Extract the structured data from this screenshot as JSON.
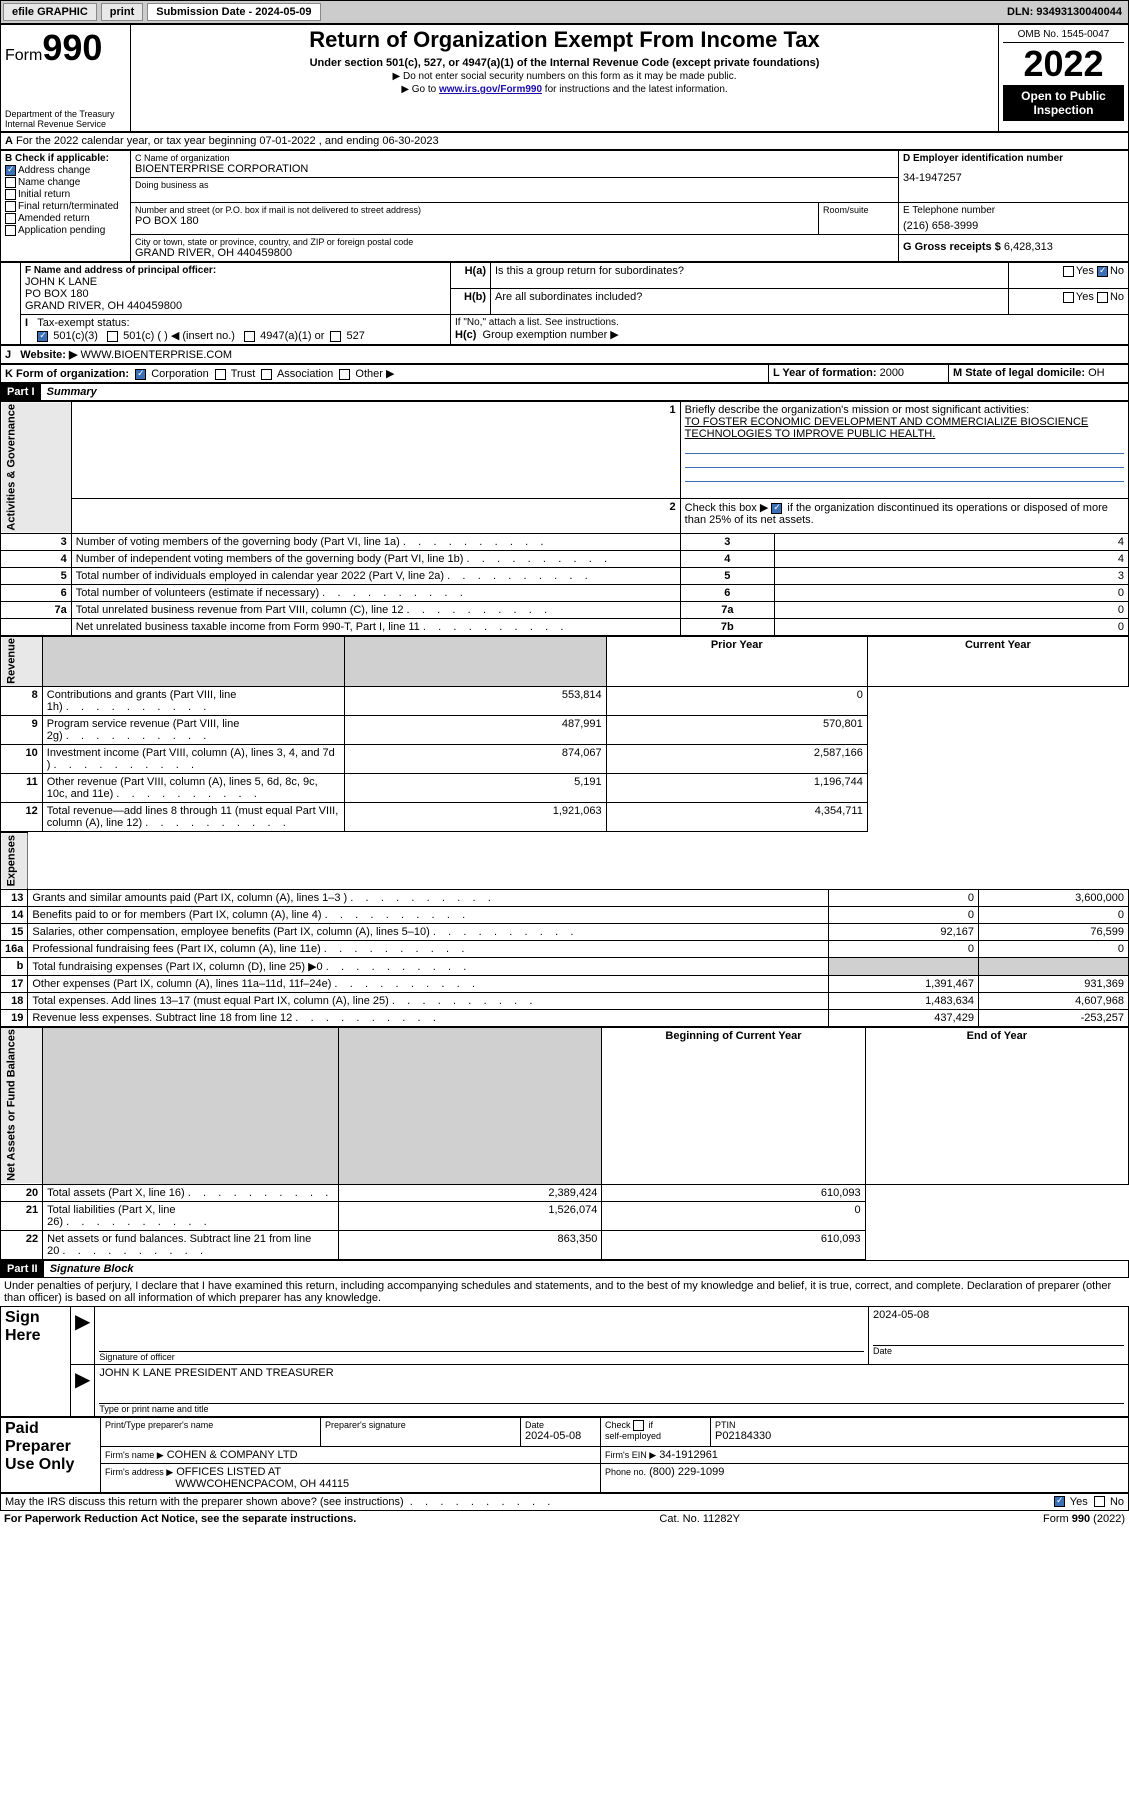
{
  "topbar": {
    "efile": "efile GRAPHIC",
    "print": "print",
    "submission": "Submission Date - 2024-05-09",
    "dln": "DLN: 93493130040044"
  },
  "header": {
    "form_prefix": "Form",
    "form_number": "990",
    "dept": "Department of the Treasury",
    "irs": "Internal Revenue Service",
    "title": "Return of Organization Exempt From Income Tax",
    "subtitle": "Under section 501(c), 527, or 4947(a)(1) of the Internal Revenue Code (except private foundations)",
    "note1": "Do not enter social security numbers on this form as it may be made public.",
    "note2_pre": "Go to ",
    "note2_link": "www.irs.gov/Form990",
    "note2_post": " for instructions and the latest information.",
    "omb": "OMB No. 1545-0047",
    "year": "2022",
    "open": "Open to Public Inspection"
  },
  "lineA": "For the 2022 calendar year, or tax year beginning 07-01-2022    , and ending 06-30-2023",
  "boxB": {
    "label": "B Check if applicable:",
    "addr": "Address change",
    "name": "Name change",
    "initial": "Initial return",
    "final": "Final return/terminated",
    "amended": "Amended return",
    "app": "Application pending"
  },
  "boxC": {
    "name_lbl": "C Name of organization",
    "name": "BIOENTERPRISE CORPORATION",
    "dba": "Doing business as",
    "addr_lbl": "Number and street (or P.O. box if mail is not delivered to street address)",
    "room": "Room/suite",
    "addr": "PO BOX 180",
    "city_lbl": "City or town, state or province, country, and ZIP or foreign postal code",
    "city": "GRAND RIVER, OH  440459800"
  },
  "boxD": {
    "lbl": "D Employer identification number",
    "val": "34-1947257"
  },
  "boxE": {
    "lbl": "E Telephone number",
    "val": "(216) 658-3999"
  },
  "boxG": {
    "lbl": "G Gross receipts $",
    "val": "6,428,313"
  },
  "boxF": {
    "lbl": "F Name and address of principal officer:",
    "line1": "JOHN K LANE",
    "line2": "PO BOX 180",
    "line3": "GRAND RIVER, OH  440459800"
  },
  "boxH": {
    "a": "Is this a group return for subordinates?",
    "b": "Are all subordinates included?",
    "b_note": "If \"No,\" attach a list. See instructions.",
    "c": "Group exemption number ▶",
    "yes": "Yes",
    "no": "No"
  },
  "lineI": {
    "lbl": "Tax-exempt status:",
    "c3": "501(c)(3)",
    "c": "501(c) (  ) ◀ (insert no.)",
    "a1": "4947(a)(1) or",
    "s527": "527"
  },
  "lineJ": {
    "lbl": "Website: ▶",
    "val": "WWW.BIOENTERPRISE.COM"
  },
  "lineK": {
    "lbl": "K Form of organization:",
    "corp": "Corporation",
    "trust": "Trust",
    "assoc": "Association",
    "other": "Other ▶"
  },
  "lineL": {
    "lbl": "L Year of formation:",
    "val": "2000"
  },
  "lineM": {
    "lbl": "M State of legal domicile:",
    "val": "OH"
  },
  "part1": {
    "hdr": "Part I",
    "title": "Summary"
  },
  "summary": {
    "q1_lbl": "Briefly describe the organization's mission or most significant activities:",
    "q1_val": "TO FOSTER ECONOMIC DEVELOPMENT AND COMMERCIALIZE BIOSCIENCE TECHNOLOGIES TO IMPROVE PUBLIC HEALTH.",
    "q2": "Check this box ▶        if the organization discontinued its operations or disposed of more than 25% of its net assets.",
    "rows_gov": [
      {
        "n": "3",
        "t": "Number of voting members of the governing body (Part VI, line 1a)",
        "l": "3",
        "v": "4"
      },
      {
        "n": "4",
        "t": "Number of independent voting members of the governing body (Part VI, line 1b)",
        "l": "4",
        "v": "4"
      },
      {
        "n": "5",
        "t": "Total number of individuals employed in calendar year 2022 (Part V, line 2a)",
        "l": "5",
        "v": "3"
      },
      {
        "n": "6",
        "t": "Total number of volunteers (estimate if necessary)",
        "l": "6",
        "v": "0"
      },
      {
        "n": "7a",
        "t": "Total unrelated business revenue from Part VIII, column (C), line 12",
        "l": "7a",
        "v": "0"
      },
      {
        "n": "",
        "t": "Net unrelated business taxable income from Form 990-T, Part I, line 11",
        "l": "7b",
        "v": "0"
      }
    ],
    "col_prior": "Prior Year",
    "col_curr": "Current Year",
    "rows_rev": [
      {
        "n": "8",
        "t": "Contributions and grants (Part VIII, line 1h)",
        "p": "553,814",
        "c": "0"
      },
      {
        "n": "9",
        "t": "Program service revenue (Part VIII, line 2g)",
        "p": "487,991",
        "c": "570,801"
      },
      {
        "n": "10",
        "t": "Investment income (Part VIII, column (A), lines 3, 4, and 7d )",
        "p": "874,067",
        "c": "2,587,166"
      },
      {
        "n": "11",
        "t": "Other revenue (Part VIII, column (A), lines 5, 6d, 8c, 9c, 10c, and 11e)",
        "p": "5,191",
        "c": "1,196,744"
      },
      {
        "n": "12",
        "t": "Total revenue—add lines 8 through 11 (must equal Part VIII, column (A), line 12)",
        "p": "1,921,063",
        "c": "4,354,711"
      }
    ],
    "rows_exp": [
      {
        "n": "13",
        "t": "Grants and similar amounts paid (Part IX, column (A), lines 1–3 )",
        "p": "0",
        "c": "3,600,000"
      },
      {
        "n": "14",
        "t": "Benefits paid to or for members (Part IX, column (A), line 4)",
        "p": "0",
        "c": "0"
      },
      {
        "n": "15",
        "t": "Salaries, other compensation, employee benefits (Part IX, column (A), lines 5–10)",
        "p": "92,167",
        "c": "76,599"
      },
      {
        "n": "16a",
        "t": "Professional fundraising fees (Part IX, column (A), line 11e)",
        "p": "0",
        "c": "0"
      },
      {
        "n": "b",
        "t": "Total fundraising expenses (Part IX, column (D), line 25) ▶0",
        "p": "",
        "c": "",
        "shade": true
      },
      {
        "n": "17",
        "t": "Other expenses (Part IX, column (A), lines 11a–11d, 11f–24e)",
        "p": "1,391,467",
        "c": "931,369"
      },
      {
        "n": "18",
        "t": "Total expenses. Add lines 13–17 (must equal Part IX, column (A), line 25)",
        "p": "1,483,634",
        "c": "4,607,968"
      },
      {
        "n": "19",
        "t": "Revenue less expenses. Subtract line 18 from line 12",
        "p": "437,429",
        "c": "-253,257"
      }
    ],
    "col_begin": "Beginning of Current Year",
    "col_end": "End of Year",
    "rows_net": [
      {
        "n": "20",
        "t": "Total assets (Part X, line 16)",
        "p": "2,389,424",
        "c": "610,093"
      },
      {
        "n": "21",
        "t": "Total liabilities (Part X, line 26)",
        "p": "1,526,074",
        "c": "0"
      },
      {
        "n": "22",
        "t": "Net assets or fund balances. Subtract line 21 from line 20",
        "p": "863,350",
        "c": "610,093"
      }
    ],
    "side_gov": "Activities & Governance",
    "side_rev": "Revenue",
    "side_exp": "Expenses",
    "side_net": "Net Assets or Fund Balances"
  },
  "part2": {
    "hdr": "Part II",
    "title": "Signature Block"
  },
  "sig": {
    "penalty": "Under penalties of perjury, I declare that I have examined this return, including accompanying schedules and statements, and to the best of my knowledge and belief, it is true, correct, and complete. Declaration of preparer (other than officer) is based on all information of which preparer has any knowledge.",
    "sign_here": "Sign Here",
    "date1": "2024-05-08",
    "sig_officer": "Signature of officer",
    "date_lbl": "Date",
    "officer": "JOHN K LANE  PRESIDENT AND TREASURER",
    "type_name": "Type or print name and title",
    "paid": "Paid Preparer Use Only",
    "prep_name": "Print/Type preparer's name",
    "prep_sig": "Preparer's signature",
    "date2": "2024-05-08",
    "check_self": "Check        if self-employed",
    "ptin_lbl": "PTIN",
    "ptin": "P02184330",
    "firm_name_lbl": "Firm's name    ▶",
    "firm_name": "COHEN & COMPANY LTD",
    "firm_ein_lbl": "Firm's EIN ▶",
    "firm_ein": "34-1912961",
    "firm_addr_lbl": "Firm's address ▶",
    "firm_addr": "OFFICES LISTED AT",
    "firm_addr2": "WWWCOHENCPACOM, OH  44115",
    "phone_lbl": "Phone no.",
    "phone": "(800) 229-1099",
    "may_irs": "May the IRS discuss this return with the preparer shown above? (see instructions)"
  },
  "footer": {
    "left": "For Paperwork Reduction Act Notice, see the separate instructions.",
    "mid": "Cat. No. 11282Y",
    "right": "Form 990 (2022)"
  }
}
